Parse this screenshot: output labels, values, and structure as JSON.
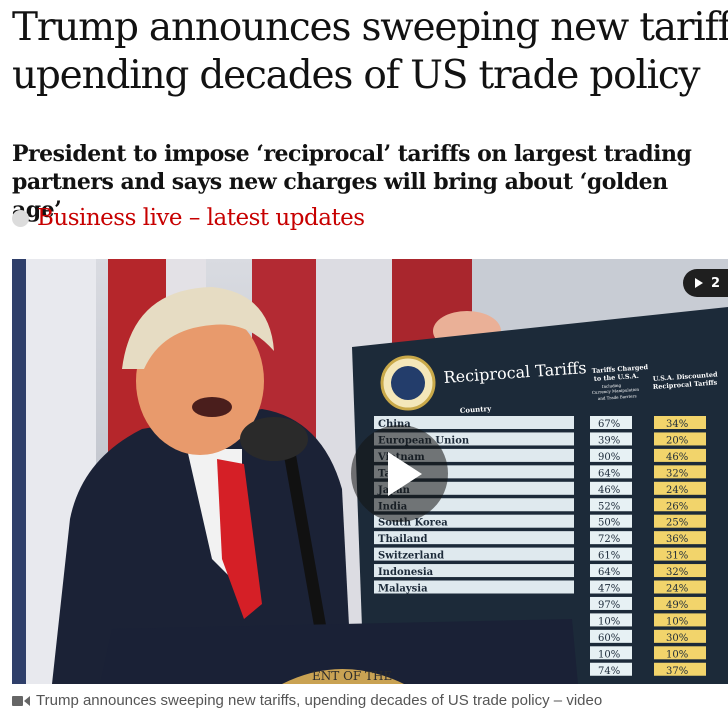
{
  "article": {
    "headline_line1": "Trump announces sweeping new tariffs,",
    "headline_line2": "upending decades of US trade policy",
    "standfirst_line1": "President to impose ‘reciprocal’ tariffs on largest trading",
    "standfirst_line2": "partners and says new charges will bring about ‘golden age’",
    "live_link": "Business live – latest updates"
  },
  "media": {
    "gallery_count": "2",
    "caption": "Trump announces sweeping new tariffs, upending decades of US trade policy – video",
    "board": {
      "title": "Reciprocal Tariffs",
      "country_header": "Country",
      "charged_header_1": "Tariffs Charged",
      "charged_header_2": "to the U.S.A.",
      "charged_header_3": "Including",
      "charged_header_4": "Currency Manipulation",
      "charged_header_5": "and Trade Barriers",
      "reciprocal_header_1": "U.S.A. Discounted",
      "reciprocal_header_2": "Reciprocal Tariffs",
      "seal_text": "ENT OF THE",
      "rows": [
        {
          "country": "China",
          "charged": "67%",
          "reciprocal": "34%"
        },
        {
          "country": "European Union",
          "charged": "39%",
          "reciprocal": "20%"
        },
        {
          "country": "Vietnam",
          "charged": "90%",
          "reciprocal": "46%"
        },
        {
          "country": "Taiwan",
          "charged": "64%",
          "reciprocal": "32%"
        },
        {
          "country": "Japan",
          "charged": "46%",
          "reciprocal": "24%"
        },
        {
          "country": "India",
          "charged": "52%",
          "reciprocal": "26%"
        },
        {
          "country": "South Korea",
          "charged": "50%",
          "reciprocal": "25%"
        },
        {
          "country": "Thailand",
          "charged": "72%",
          "reciprocal": "36%"
        },
        {
          "country": "Switzerland",
          "charged": "61%",
          "reciprocal": "31%"
        },
        {
          "country": "Indonesia",
          "charged": "64%",
          "reciprocal": "32%"
        },
        {
          "country": "Malaysia",
          "charged": "47%",
          "reciprocal": "24%"
        },
        {
          "country": "",
          "charged": "97%",
          "reciprocal": "49%"
        },
        {
          "country": "",
          "charged": "10%",
          "reciprocal": "10%"
        },
        {
          "country": "",
          "charged": "60%",
          "reciprocal": "30%"
        },
        {
          "country": "",
          "charged": "10%",
          "reciprocal": "10%"
        },
        {
          "country": "",
          "charged": "74%",
          "reciprocal": "37%"
        }
      ]
    }
  },
  "colors": {
    "live_link": "#c70000",
    "board_bg": "#1c2a39",
    "country_bar": "#dfe9ee",
    "charged_cell": "#e7f1f4",
    "reciprocal_cell": "#f2d46b"
  },
  "icons": {
    "live": "live-dot-icon",
    "play": "play-icon",
    "gallery": "gallery-play-icon",
    "caption": "video-camera-icon"
  }
}
